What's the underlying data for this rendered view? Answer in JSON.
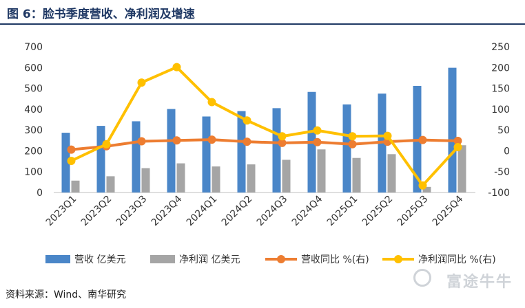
{
  "title": "图 6：脸书季度营收、净利润及增速",
  "source": "资料来源：Wind、南华研究",
  "watermark": "富途牛牛",
  "colors": {
    "revenue": "#4a86c8",
    "profit": "#a5a5a5",
    "revenue_yoy": "#ed7d31",
    "profit_yoy": "#ffc000",
    "title": "#1f3864"
  },
  "chart_data": {
    "type": "bar",
    "categories": [
      "2023Q1",
      "2023Q2",
      "2023Q3",
      "2023Q4",
      "2024Q1",
      "2024Q2",
      "2024Q3",
      "2024Q4",
      "2025Q1",
      "2025Q2",
      "2025Q3",
      "2025Q4"
    ],
    "series": [
      {
        "name": "营收 亿美元",
        "type": "bar",
        "axis": "left",
        "values": [
          287,
          320,
          342,
          401,
          365,
          391,
          405,
          483,
          423,
          475,
          512,
          599
        ]
      },
      {
        "name": "净利润 亿美元",
        "type": "bar",
        "axis": "left",
        "values": [
          57,
          78,
          117,
          140,
          125,
          135,
          157,
          207,
          166,
          184,
          27,
          227
        ]
      },
      {
        "name": "营收同比 %(右)",
        "type": "line",
        "axis": "right",
        "values": [
          3,
          11,
          23,
          25,
          27,
          22,
          19,
          21,
          16,
          22,
          26,
          24
        ]
      },
      {
        "name": "净利润同比 %(右)",
        "type": "line",
        "axis": "right",
        "values": [
          -24,
          16,
          164,
          201,
          117,
          73,
          35,
          49,
          35,
          36,
          -83,
          9
        ]
      }
    ],
    "y_left": {
      "min": 0,
      "max": 700,
      "ticks": [
        0,
        100,
        200,
        300,
        400,
        500,
        600,
        700
      ]
    },
    "y_right": {
      "min": -100,
      "max": 250,
      "ticks": [
        -100,
        -50,
        0,
        50,
        100,
        150,
        200,
        250
      ]
    },
    "grid": false,
    "legend": "bottom"
  }
}
